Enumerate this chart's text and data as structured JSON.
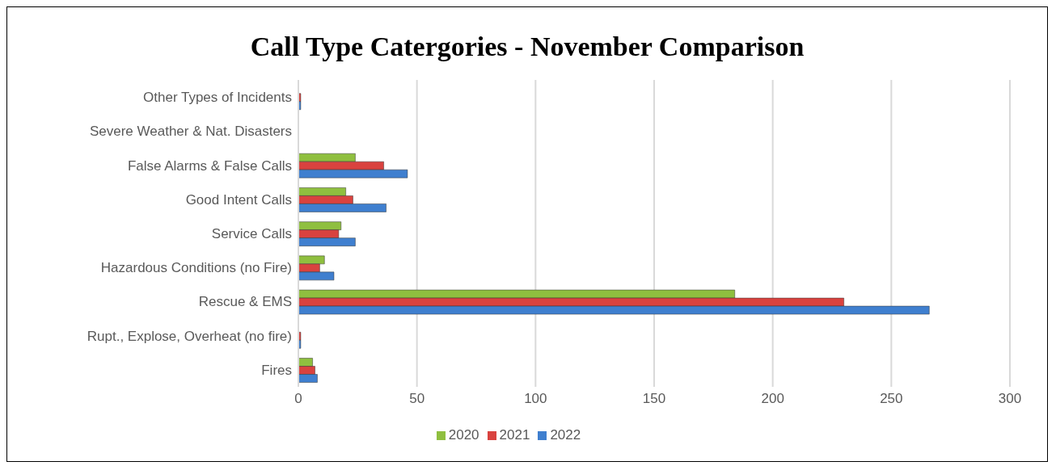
{
  "chart_data": {
    "type": "bar",
    "orientation": "horizontal",
    "title": "Call Type Catergories - November Comparison",
    "categories": [
      "Other Types of Incidents",
      "Severe Weather & Nat. Disasters",
      "False Alarms & False Calls",
      "Good Intent Calls",
      "Service Calls",
      "Hazardous Conditions (no Fire)",
      "Rescue & EMS",
      "Rupt., Explose, Overheat (no fire)",
      "Fires"
    ],
    "series": [
      {
        "name": "2020",
        "color": "#8fbf3f",
        "values": [
          0,
          0,
          24,
          20,
          18,
          11,
          184,
          0,
          6
        ]
      },
      {
        "name": "2021",
        "color": "#d9423f",
        "values": [
          1,
          0,
          36,
          23,
          17,
          9,
          230,
          1,
          7
        ]
      },
      {
        "name": "2022",
        "color": "#3f7fcf",
        "values": [
          1,
          0,
          46,
          37,
          24,
          15,
          266,
          1,
          8
        ]
      }
    ],
    "xlim": [
      0,
      300
    ],
    "xticks": [
      0,
      50,
      100,
      150,
      200,
      250,
      300
    ],
    "grid": "x",
    "legend": "bottom"
  }
}
